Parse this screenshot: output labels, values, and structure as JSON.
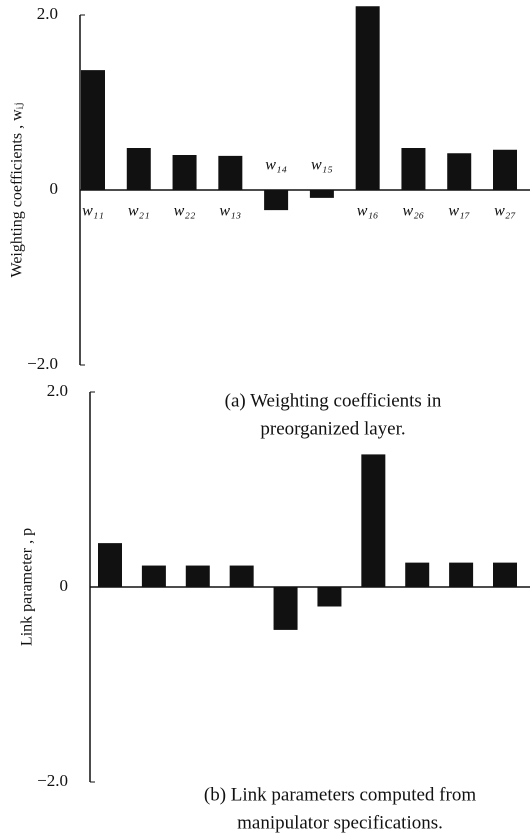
{
  "chart_data": [
    {
      "type": "bar",
      "caption": [
        "(a) Weighting coefficients in",
        "preorganized layer."
      ],
      "y_label": "Weighting coefficients , wᵢⱼ",
      "categories": [
        "w₁₁",
        "w₂₁",
        "w₂₂",
        "w₁₃",
        "w₁₄",
        "w₁₅",
        "w₁₆",
        "w₂₆",
        "w₁₇",
        "w₂₇"
      ],
      "values": [
        1.37,
        0.48,
        0.4,
        0.39,
        -0.23,
        -0.09,
        2.1,
        0.48,
        0.42,
        0.46
      ],
      "color": "#111111",
      "ylim": [
        -2.0,
        2.0
      ],
      "yticks": [
        {
          "value": 2.0,
          "label": "2.0"
        },
        0,
        {
          "value": -2.0,
          "label": "−2.0"
        }
      ]
    },
    {
      "type": "bar",
      "caption": [
        "(b) Link parameters computed from",
        "manipulator specifications."
      ],
      "y_label": "Link parameter , p",
      "values": [
        0.45,
        0.22,
        0.22,
        0.22,
        -0.44,
        -0.2,
        1.36,
        0.25,
        0.25,
        0.25
      ],
      "color": "#111111",
      "ylim": [
        -2.0,
        2.0
      ],
      "yticks": [
        {
          "value": 2.0,
          "label": "2.0"
        },
        0,
        {
          "value": -2.0,
          "label": "−2.0"
        }
      ]
    }
  ]
}
